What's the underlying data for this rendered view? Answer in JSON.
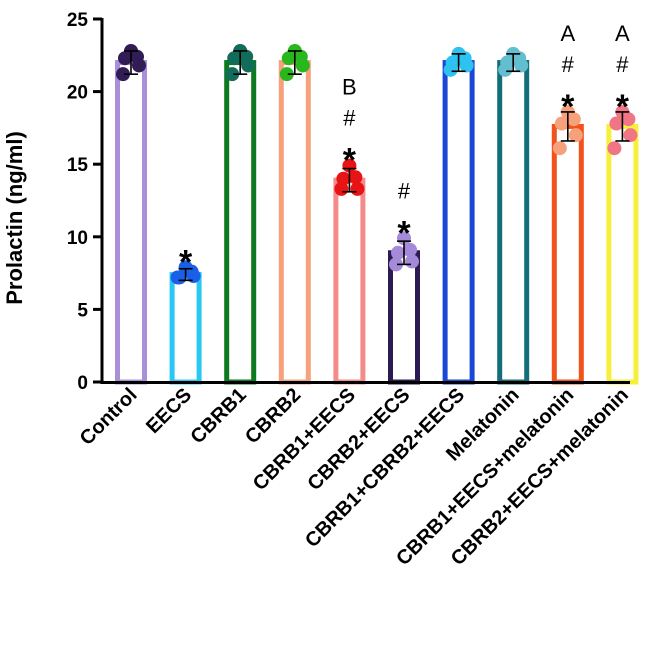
{
  "chart_data": {
    "type": "bar",
    "title": "",
    "xlabel": "",
    "ylabel": "Prolactin (ng/ml)",
    "ylim": [
      0,
      25
    ],
    "yticks": [
      "0",
      "5",
      "10",
      "15",
      "20",
      "25"
    ],
    "grid": false,
    "legend": "none",
    "categories": [
      "Control",
      "EECS",
      "CBRB1",
      "CBRB2",
      "CBRB1+EECS",
      "CBRB2+EECS",
      "CBRB1+CBRB2+EECS",
      "Melatonin",
      "CBRB1+EECS+melatonin",
      "CBRB2+EECS+melatonin"
    ],
    "values": [
      22.0,
      7.4,
      22.0,
      22.0,
      13.9,
      8.9,
      22.0,
      22.0,
      17.6,
      17.6
    ],
    "errors": [
      0.8,
      0.4,
      0.8,
      0.8,
      0.8,
      0.8,
      0.6,
      0.6,
      1.0,
      1.0
    ],
    "points": [
      [
        22.8,
        22.3,
        21.2,
        21.8,
        22.4
      ],
      [
        7.9,
        7.2,
        7.2,
        7.3,
        7.6
      ],
      [
        22.8,
        22.3,
        21.2,
        21.8,
        22.4
      ],
      [
        22.8,
        22.3,
        21.2,
        21.8,
        22.4
      ],
      [
        14.9,
        14.0,
        13.3,
        13.3,
        14.1
      ],
      [
        9.9,
        8.9,
        8.1,
        8.3,
        9.1
      ],
      [
        22.6,
        22.0,
        21.5,
        21.8,
        22.3
      ],
      [
        22.6,
        22.0,
        21.5,
        21.8,
        22.3
      ],
      [
        18.6,
        17.8,
        16.1,
        17.0,
        18.1
      ],
      [
        18.6,
        17.8,
        16.1,
        17.0,
        18.1
      ]
    ],
    "bar_colors": [
      "#a98fd9",
      "#29c8f4",
      "#0c7a1e",
      "#f6a07c",
      "#f58a8a",
      "#2c1b53",
      "#1a47d6",
      "#146e7a",
      "#f2521c",
      "#f6f03a"
    ],
    "point_colors": [
      "#321c55",
      "#1a5fe8",
      "#116d59",
      "#28b81e",
      "#e81314",
      "#a48ad8",
      "#2ec2f0",
      "#63bfd0",
      "#f6a07c",
      "#f07585"
    ],
    "annotations": [
      {
        "category": "EECS",
        "lines": [
          "*"
        ]
      },
      {
        "category": "CBRB1+EECS",
        "lines": [
          "B",
          "#",
          "*"
        ]
      },
      {
        "category": "CBRB2+EECS",
        "lines": [
          "#",
          "*"
        ]
      },
      {
        "category": "CBRB1+EECS+melatonin",
        "lines": [
          "A",
          "#",
          "*"
        ]
      },
      {
        "category": "CBRB2+EECS+melatonin",
        "lines": [
          "A",
          "#",
          "*"
        ]
      }
    ]
  }
}
